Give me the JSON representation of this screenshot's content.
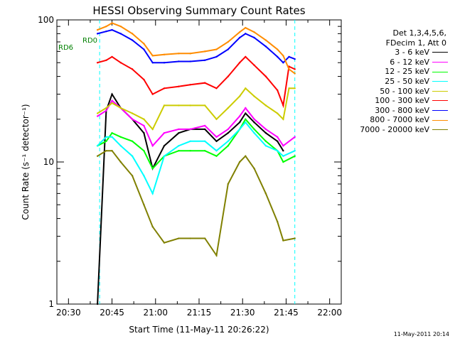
{
  "chart_data": {
    "type": "line",
    "title": "HESSI Observing Summary Count Rates",
    "xlabel": "Start Time (11-May-11 20:26:22)",
    "ylabel": "Count Rate (s⁻¹ detector⁻¹)",
    "xlim": [
      "20:26",
      "22:04"
    ],
    "ylim": [
      1,
      100
    ],
    "yscale": "log",
    "x_ticks": [
      "20:30",
      "20:45",
      "21:00",
      "21:15",
      "21:30",
      "21:45",
      "22:00"
    ],
    "y_ticks": [
      "1",
      "10",
      "100"
    ],
    "legend_header": [
      "Det 1,3,4,5,6,",
      "FDecim 1, Att 0"
    ],
    "series": [
      {
        "name": "3 - 6 keV",
        "color": "#000000",
        "x": [
          "20:40",
          "20:43",
          "20:45",
          "20:48",
          "20:52",
          "20:56",
          "20:59",
          "21:03",
          "21:08",
          "21:12",
          "21:17",
          "21:21",
          "21:25",
          "21:29",
          "21:31",
          "21:34",
          "21:38",
          "21:42",
          "21:44"
        ],
        "y": [
          1.0,
          23,
          30,
          24,
          20,
          16,
          9,
          13,
          16,
          17,
          17,
          14,
          16,
          19,
          22,
          19,
          16,
          14,
          12
        ]
      },
      {
        "name": "6 - 12 keV",
        "color": "#ff00ff",
        "x": [
          "20:40",
          "20:43",
          "20:45",
          "20:48",
          "20:52",
          "20:56",
          "20:59",
          "21:03",
          "21:08",
          "21:12",
          "21:17",
          "21:21",
          "21:25",
          "21:29",
          "21:31",
          "21:34",
          "21:38",
          "21:42",
          "21:44",
          "21:48"
        ],
        "y": [
          21,
          23,
          27,
          24,
          20,
          18,
          13,
          16,
          17,
          17,
          18,
          15,
          17,
          21,
          24,
          20,
          17,
          15,
          13,
          15
        ]
      },
      {
        "name": "12 - 25 keV",
        "color": "#00ff00",
        "x": [
          "20:40",
          "20:43",
          "20:45",
          "20:48",
          "20:52",
          "20:56",
          "20:59",
          "21:03",
          "21:08",
          "21:12",
          "21:17",
          "21:21",
          "21:25",
          "21:29",
          "21:31",
          "21:34",
          "21:38",
          "21:42",
          "21:44",
          "21:48"
        ],
        "y": [
          13,
          14,
          16,
          15,
          14,
          12,
          9,
          11,
          12,
          12,
          12,
          11,
          13,
          17,
          20,
          17,
          14,
          12,
          10,
          11
        ]
      },
      {
        "name": "25 - 50 keV",
        "color": "#00ffff",
        "x": [
          "20:40",
          "20:43",
          "20:45",
          "20:48",
          "20:52",
          "20:56",
          "20:59",
          "21:03",
          "21:08",
          "21:12",
          "21:17",
          "21:21",
          "21:25",
          "21:29",
          "21:31",
          "21:34",
          "21:38",
          "21:42",
          "21:44",
          "21:48"
        ],
        "y": [
          13,
          15,
          15,
          13,
          11,
          8,
          6,
          11,
          13,
          14,
          14,
          12,
          14,
          17,
          19,
          16,
          13,
          12,
          11,
          12
        ]
      },
      {
        "name": "50 - 100 keV",
        "color": "#cccc00",
        "x": [
          "20:40",
          "20:43",
          "20:45",
          "20:48",
          "20:52",
          "20:56",
          "20:59",
          "21:03",
          "21:08",
          "21:12",
          "21:17",
          "21:21",
          "21:25",
          "21:29",
          "21:31",
          "21:34",
          "21:38",
          "21:42",
          "21:44",
          "21:46",
          "21:48"
        ],
        "y": [
          22,
          24,
          26,
          24,
          22,
          20,
          17,
          25,
          25,
          25,
          25,
          20,
          24,
          29,
          33,
          29,
          25,
          22,
          20,
          33,
          33
        ]
      },
      {
        "name": "100 - 300 keV",
        "color": "#ff0000",
        "x": [
          "20:40",
          "20:43",
          "20:45",
          "20:48",
          "20:52",
          "20:56",
          "20:59",
          "21:03",
          "21:08",
          "21:12",
          "21:17",
          "21:21",
          "21:25",
          "21:29",
          "21:31",
          "21:34",
          "21:38",
          "21:42",
          "21:44",
          "21:46",
          "21:48"
        ],
        "y": [
          50,
          52,
          55,
          50,
          45,
          38,
          30,
          33,
          34,
          35,
          36,
          33,
          40,
          50,
          55,
          48,
          40,
          32,
          25,
          47,
          45
        ]
      },
      {
        "name": "300 - 800 keV",
        "color": "#0000ff",
        "x": [
          "20:40",
          "20:43",
          "20:45",
          "20:48",
          "20:52",
          "20:56",
          "20:59",
          "21:03",
          "21:08",
          "21:12",
          "21:17",
          "21:21",
          "21:25",
          "21:29",
          "21:31",
          "21:34",
          "21:38",
          "21:42",
          "21:44",
          "21:46",
          "21:48"
        ],
        "y": [
          80,
          83,
          85,
          80,
          72,
          62,
          50,
          50,
          51,
          51,
          52,
          55,
          62,
          75,
          80,
          75,
          65,
          55,
          50,
          55,
          53
        ]
      },
      {
        "name": "800 - 7000 keV",
        "color": "#ff8c00",
        "x": [
          "20:40",
          "20:43",
          "20:45",
          "20:48",
          "20:52",
          "20:56",
          "20:59",
          "21:03",
          "21:08",
          "21:12",
          "21:17",
          "21:21",
          "21:25",
          "21:29",
          "21:31",
          "21:34",
          "21:38",
          "21:42",
          "21:44",
          "21:46",
          "21:48"
        ],
        "y": [
          85,
          90,
          95,
          90,
          80,
          68,
          56,
          57,
          58,
          58,
          60,
          62,
          70,
          82,
          88,
          82,
          72,
          62,
          56,
          45,
          42
        ]
      },
      {
        "name": "7000 - 20000 keV",
        "color": "#808000",
        "x": [
          "20:40",
          "20:43",
          "20:45",
          "20:48",
          "20:52",
          "20:56",
          "20:59",
          "21:03",
          "21:08",
          "21:12",
          "21:17",
          "21:21",
          "21:25",
          "21:29",
          "21:31",
          "21:34",
          "21:38",
          "21:42",
          "21:44",
          "21:48"
        ],
        "y": [
          11,
          12,
          12,
          10,
          8,
          5,
          3.5,
          2.7,
          2.9,
          2.9,
          2.9,
          2.2,
          7,
          10,
          11,
          9,
          6,
          3.8,
          2.8,
          2.9
        ]
      }
    ],
    "annotations": [
      {
        "text": "RD0",
        "color": "#008000"
      },
      {
        "text": "RD6",
        "color": "#008000"
      }
    ],
    "grid": false,
    "legend_position": "right"
  },
  "timestamp": "11-May-2011 20:14"
}
